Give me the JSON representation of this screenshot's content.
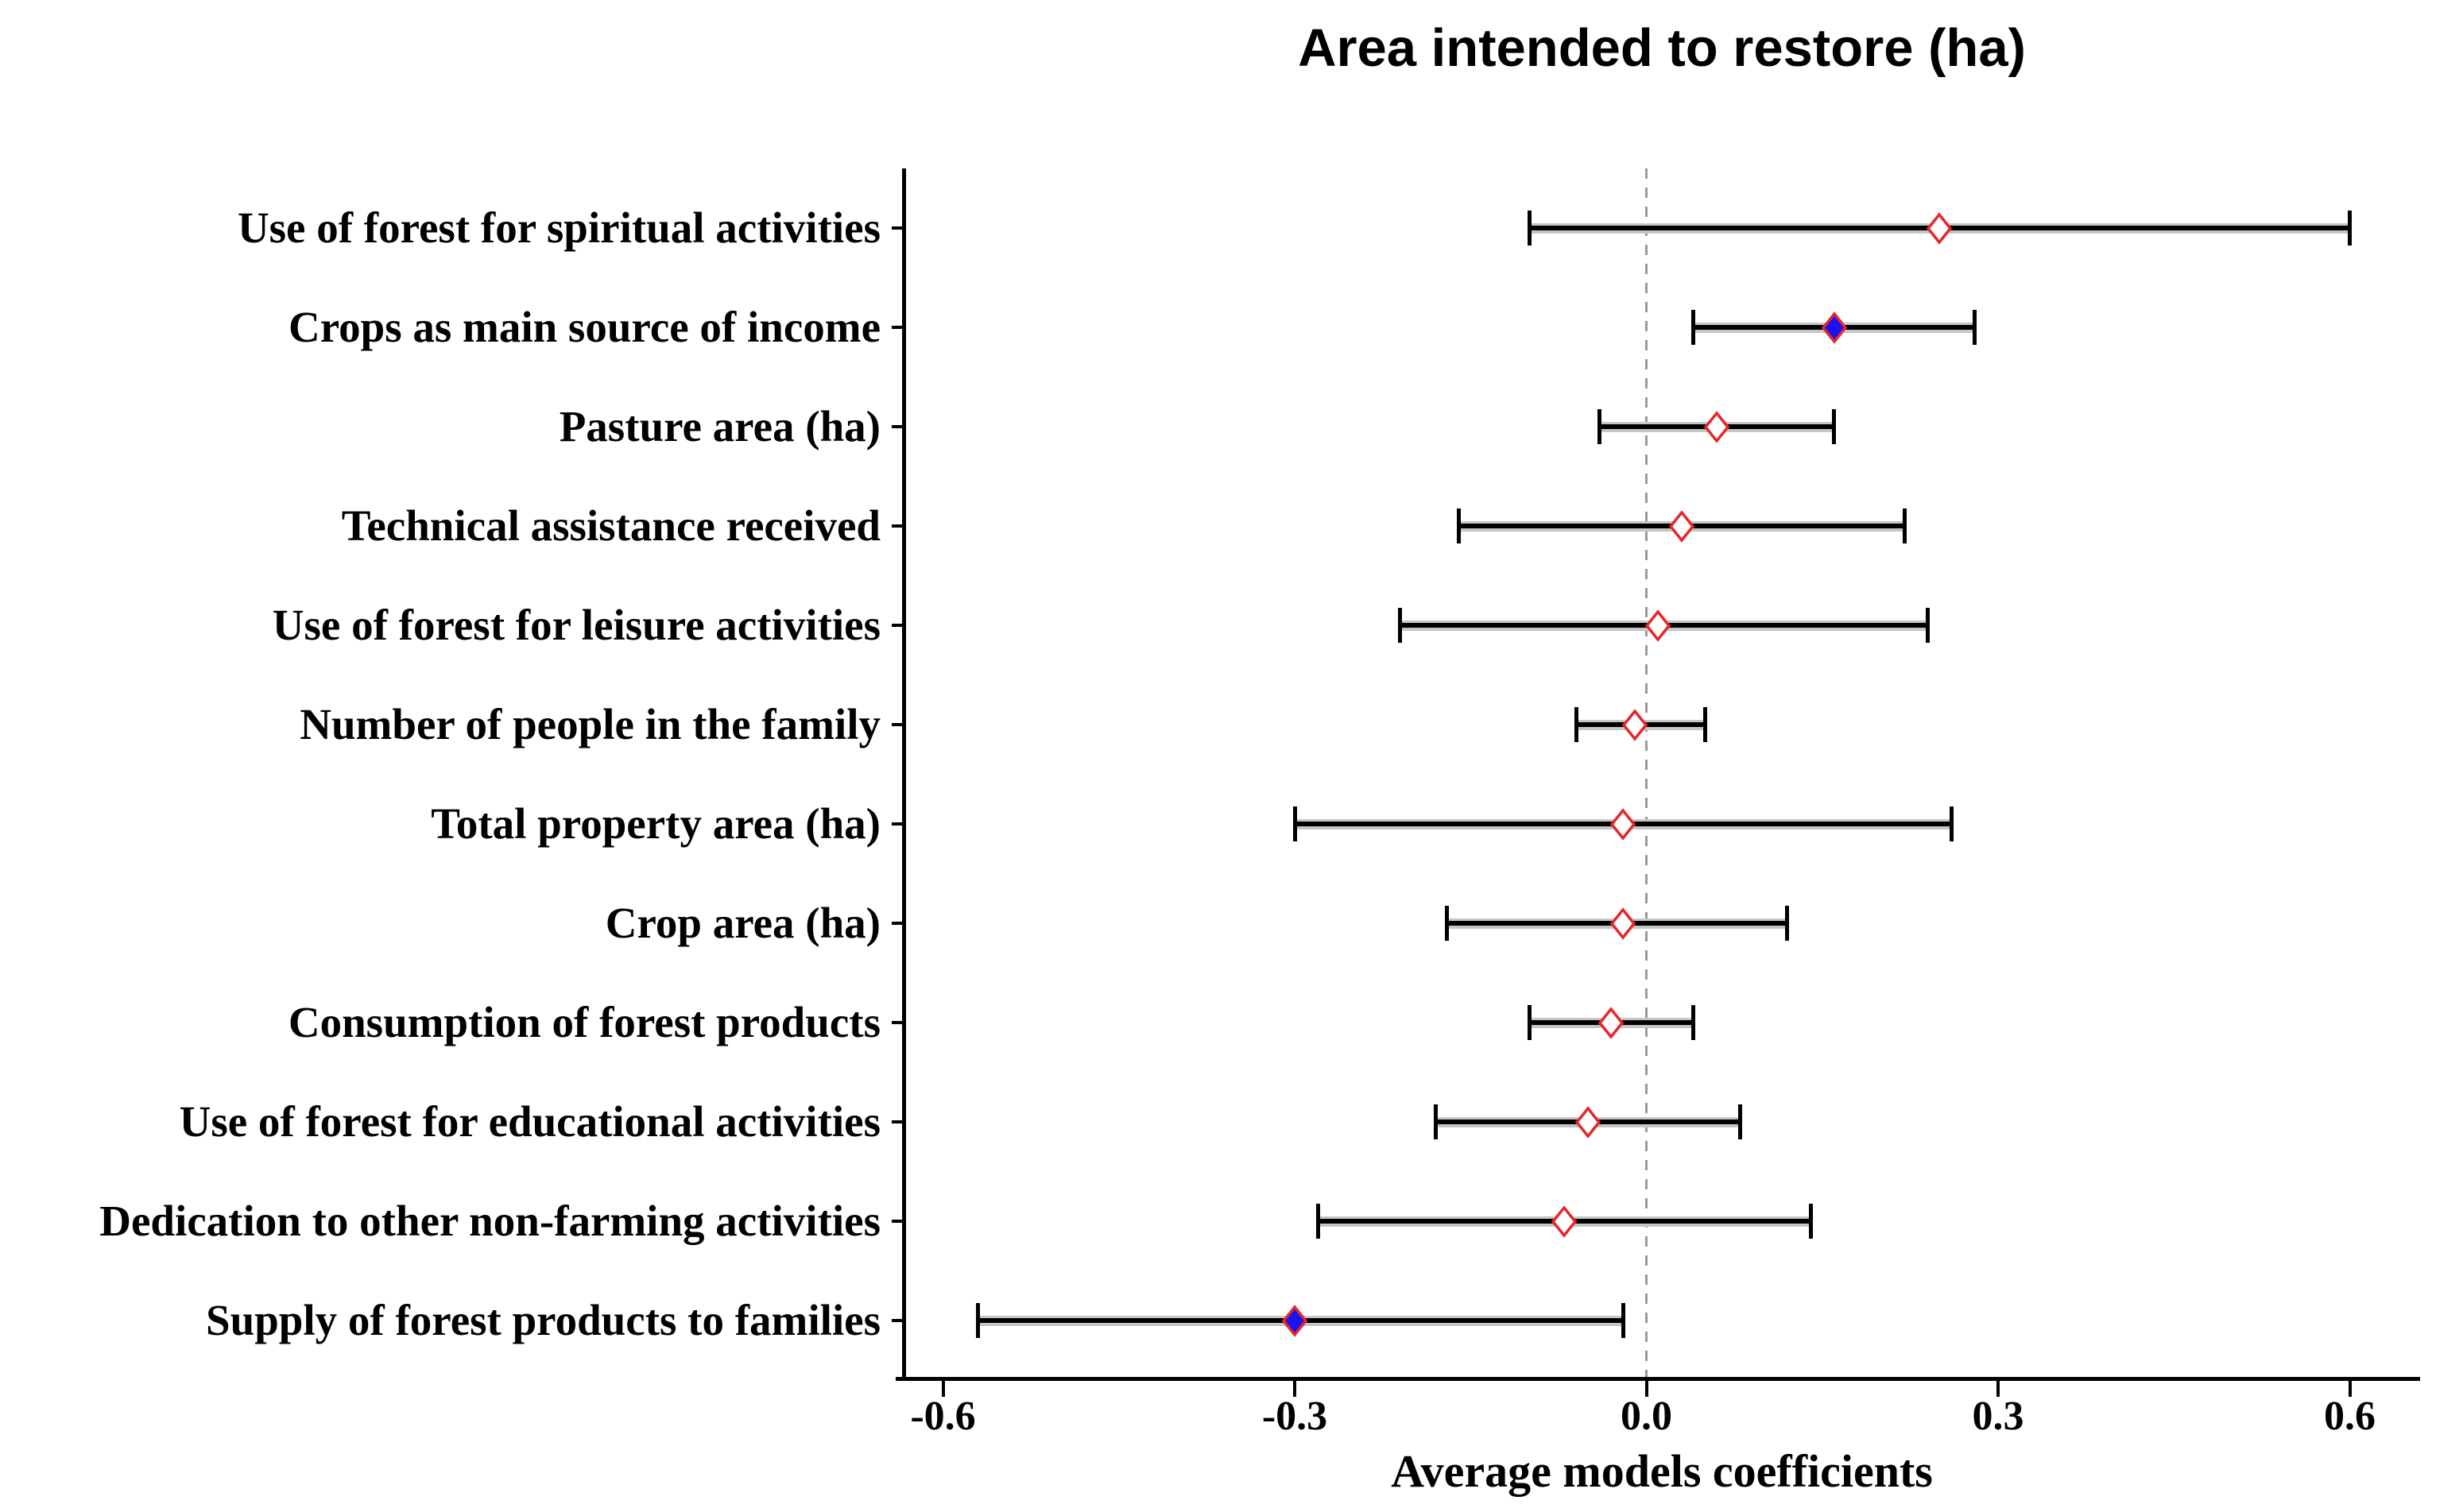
{
  "chart_data": {
    "type": "scatter",
    "subtype": "forest-plot-with-ci",
    "title": "Area intended to restore (ha)",
    "xlabel": "Average models coefficients",
    "ylabel": "",
    "xlim": [
      -0.66,
      0.67
    ],
    "zero_reference_line": 0.0,
    "grid": false,
    "legend": "none",
    "x_ticks": [
      {
        "value": -0.6,
        "label": "-0.6"
      },
      {
        "value": -0.3,
        "label": "-0.3"
      },
      {
        "value": 0.0,
        "label": "0.0"
      },
      {
        "value": 0.3,
        "label": "0.3"
      },
      {
        "value": 0.6,
        "label": "0.6"
      }
    ],
    "rows": [
      {
        "label": "Use of forest for spiritual activities",
        "value": 0.25,
        "ci_low": -0.1,
        "ci_high": 0.6,
        "marker": "open"
      },
      {
        "label": "Crops as main source of income",
        "value": 0.16,
        "ci_low": 0.04,
        "ci_high": 0.28,
        "marker": "filled"
      },
      {
        "label": "Pasture area (ha)",
        "value": 0.06,
        "ci_low": -0.04,
        "ci_high": 0.16,
        "marker": "open"
      },
      {
        "label": "Technical assistance received",
        "value": 0.03,
        "ci_low": -0.16,
        "ci_high": 0.22,
        "marker": "open"
      },
      {
        "label": "Use of forest for leisure activities",
        "value": 0.01,
        "ci_low": -0.21,
        "ci_high": 0.24,
        "marker": "open"
      },
      {
        "label": "Number of people in the family",
        "value": -0.01,
        "ci_low": -0.06,
        "ci_high": 0.05,
        "marker": "open"
      },
      {
        "label": "Total property area (ha)",
        "value": -0.02,
        "ci_low": -0.3,
        "ci_high": 0.26,
        "marker": "open"
      },
      {
        "label": "Crop area (ha)",
        "value": -0.02,
        "ci_low": -0.17,
        "ci_high": 0.12,
        "marker": "open"
      },
      {
        "label": "Consumption of forest products",
        "value": -0.03,
        "ci_low": -0.1,
        "ci_high": 0.04,
        "marker": "open"
      },
      {
        "label": "Use of forest for educational activities",
        "value": -0.05,
        "ci_low": -0.18,
        "ci_high": 0.08,
        "marker": "open"
      },
      {
        "label": "Dedication to other non-farming activities",
        "value": -0.07,
        "ci_low": -0.28,
        "ci_high": 0.14,
        "marker": "open"
      },
      {
        "label": "Supply of forest products to families",
        "value": -0.3,
        "ci_low": -0.57,
        "ci_high": -0.02,
        "marker": "filled"
      }
    ],
    "colors": {
      "marker_stroke": "#e62629",
      "open_marker_fill": "#ffffff",
      "filled_marker_fill": "#1b12ee",
      "ci_line": "#000000",
      "ci_halo": "#c6c6c6",
      "zero_line": "#9a9a9a",
      "axis": "#000000",
      "text": "#000000"
    }
  }
}
